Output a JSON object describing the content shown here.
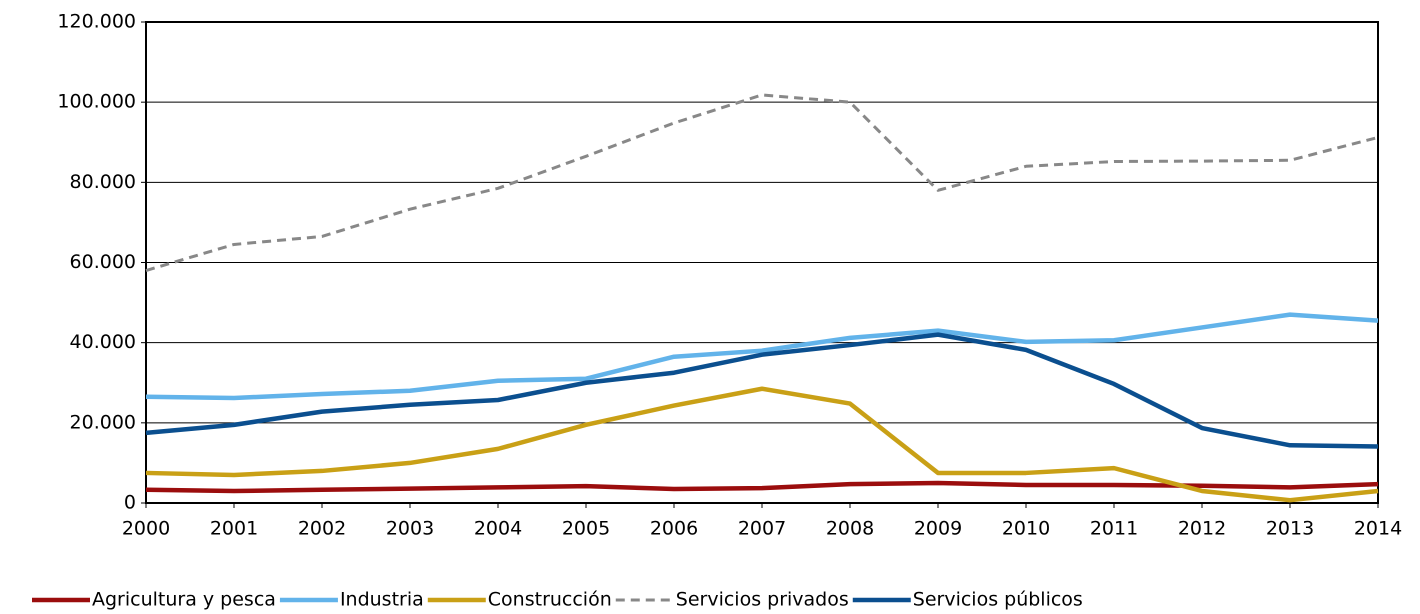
{
  "chart_data": {
    "type": "line",
    "x": [
      2000,
      2001,
      2002,
      2003,
      2004,
      2005,
      2006,
      2007,
      2008,
      2009,
      2010,
      2011,
      2012,
      2013,
      2014
    ],
    "xlim": [
      2000,
      2014
    ],
    "xticks": [
      2000,
      2001,
      2002,
      2003,
      2004,
      2005,
      2006,
      2007,
      2008,
      2009,
      2010,
      2011,
      2012,
      2013,
      2014
    ],
    "ylim": [
      0,
      120000
    ],
    "yticks": [
      0,
      {
        "value": 20000,
        "label": "20.000"
      },
      {
        "value": 40000,
        "label": "40.000"
      },
      {
        "value": 60000,
        "label": "60.000"
      },
      {
        "value": 80000,
        "label": "80.000"
      },
      {
        "value": 100000,
        "label": "100.000"
      },
      {
        "value": 120000,
        "label": "120.000"
      }
    ],
    "grid": true,
    "legend": "bottom",
    "series": [
      {
        "name": "Agricultura y pesca",
        "color": "#9b0d0d",
        "dashed": false,
        "values": [
          3300,
          3000,
          3300,
          3600,
          3900,
          4200,
          3500,
          3700,
          4700,
          5000,
          4500,
          4500,
          4300,
          3900,
          4700
        ]
      },
      {
        "name": "Industria",
        "color": "#62b3ea",
        "dashed": false,
        "values": [
          26500,
          26200,
          27200,
          28000,
          30500,
          31000,
          36500,
          38000,
          41200,
          43000,
          40200,
          40600,
          43800,
          47000,
          45500
        ]
      },
      {
        "name": "Construcción",
        "color": "#c9a016",
        "dashed": false,
        "values": [
          7500,
          7000,
          8000,
          10000,
          13500,
          19500,
          24300,
          28500,
          24800,
          7500,
          7500,
          8700,
          3000,
          700,
          3000
        ]
      },
      {
        "name": "Servicios privados",
        "color": "#888888",
        "dashed": true,
        "values": [
          58000,
          64500,
          66500,
          73300,
          78500,
          86500,
          94800,
          101800,
          100000,
          78000,
          84000,
          85200,
          85300,
          85500,
          91200
        ]
      },
      {
        "name": "Servicios públicos",
        "color": "#0b4f8f",
        "dashed": false,
        "values": [
          17500,
          19500,
          22800,
          24500,
          25700,
          30000,
          32500,
          37000,
          39400,
          42000,
          38200,
          29700,
          18700,
          14400,
          14100
        ]
      }
    ]
  }
}
